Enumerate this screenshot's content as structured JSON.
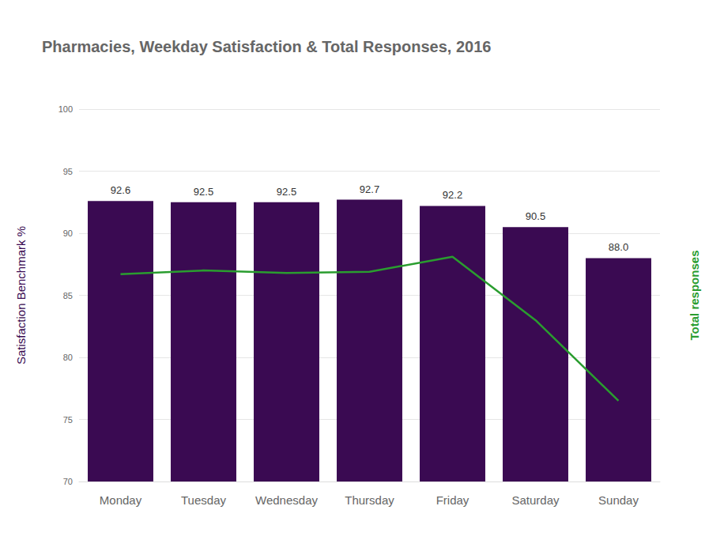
{
  "chart_data": {
    "type": "bar",
    "title": "Pharmacies, Weekday Satisfaction & Total Responses, 2016",
    "categories": [
      "Monday",
      "Tuesday",
      "Wednesday",
      "Thursday",
      "Friday",
      "Saturday",
      "Sunday"
    ],
    "ylabel": "Satisfaction Benchmark %",
    "y2label": "Total responses",
    "ylim": [
      70,
      100
    ],
    "yticks": [
      70,
      75,
      80,
      85,
      90,
      95,
      100
    ],
    "y2lim": [
      70,
      100
    ],
    "grid": true,
    "series": [
      {
        "name": "Satisfaction Benchmark %",
        "type": "bar",
        "color": "#3a0a52",
        "values": [
          92.6,
          92.5,
          92.5,
          92.7,
          92.2,
          90.5,
          88.0
        ],
        "value_labels": [
          "92.6",
          "92.5",
          "92.5",
          "92.7",
          "92.2",
          "90.5",
          "88.0"
        ],
        "data_labels": true
      },
      {
        "name": "Total responses",
        "type": "line",
        "axis": "y2",
        "color": "#2a9d2f",
        "values": [
          86.7,
          87.0,
          86.8,
          86.9,
          88.1,
          83.0,
          76.5
        ]
      }
    ]
  }
}
